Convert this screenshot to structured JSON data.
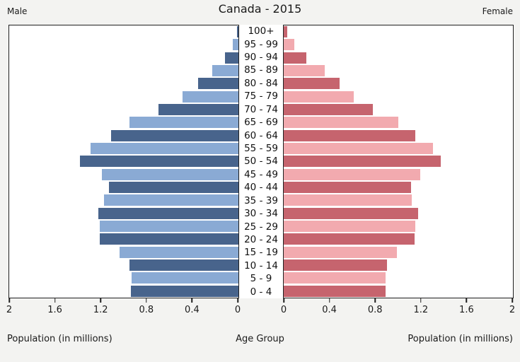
{
  "header": {
    "title": "Canada - 2015",
    "left_label": "Male",
    "right_label": "Female"
  },
  "axis": {
    "left_ticks": [
      "2",
      "1.6",
      "1.2",
      "0.8",
      "0.4",
      "0"
    ],
    "right_ticks": [
      "0",
      "0.4",
      "0.8",
      "1.2",
      "1.6",
      "2"
    ],
    "left_axis_label": "Population (in millions)",
    "center_axis_label": "Age Group",
    "right_axis_label": "Population (in millions)"
  },
  "colors": {
    "male_dark": "#48648c",
    "male_light": "#8aaad4",
    "female_dark": "#c6646e",
    "female_light": "#f2aaaf",
    "panel_border": "#1f1f1f",
    "panel_bg": "#ffffff",
    "figure_bg": "#f3f3f1"
  },
  "chart_data": {
    "type": "bar",
    "subtype": "population-pyramid",
    "title": "Canada - 2015",
    "xlabel": "Population (in millions)",
    "ylabel": "Age Group",
    "xlim": [
      0,
      2
    ],
    "grid": false,
    "categories": [
      "100+",
      "95 - 99",
      "90 - 94",
      "85 - 89",
      "80 - 84",
      "75 - 79",
      "70 - 74",
      "65 - 69",
      "60 - 64",
      "55 - 59",
      "50 - 54",
      "45 - 49",
      "40 - 44",
      "35 - 39",
      "30 - 34",
      "25 - 29",
      "20 - 24",
      "15 - 19",
      "10 - 14",
      "5 - 9",
      "0 - 4"
    ],
    "series": [
      {
        "name": "Male",
        "side": "left",
        "values": [
          0.01,
          0.05,
          0.12,
          0.23,
          0.35,
          0.49,
          0.7,
          0.95,
          1.11,
          1.29,
          1.38,
          1.19,
          1.13,
          1.17,
          1.22,
          1.21,
          1.21,
          1.04,
          0.95,
          0.93,
          0.94
        ]
      },
      {
        "name": "Female",
        "side": "right",
        "values": [
          0.03,
          0.09,
          0.2,
          0.36,
          0.49,
          0.61,
          0.78,
          1.0,
          1.15,
          1.3,
          1.37,
          1.19,
          1.11,
          1.12,
          1.17,
          1.15,
          1.14,
          0.99,
          0.9,
          0.89,
          0.89
        ]
      }
    ]
  }
}
